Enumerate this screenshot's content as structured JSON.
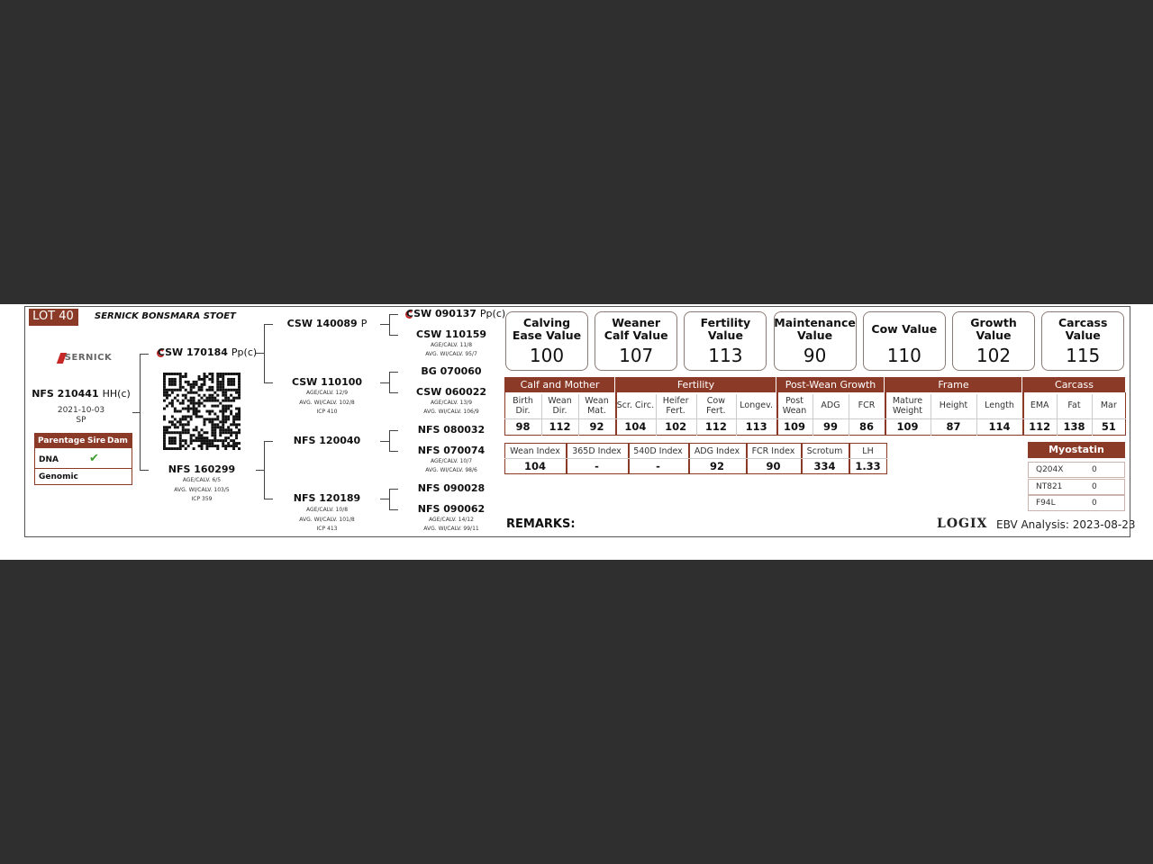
{
  "lot": {
    "label": "LOT 40",
    "title": "SERNICK BONSMARA STOET"
  },
  "brand": "SERNICK",
  "animal": {
    "id": "NFS 210441",
    "tag": "HH(c)",
    "birth_date": "2021-10-03",
    "code": "SP"
  },
  "parentage": {
    "headers": [
      "Parentage",
      "Sire",
      "Dam"
    ],
    "rows": [
      "DNA",
      "Genomic"
    ]
  },
  "pedigree": {
    "sire": {
      "id": "CSW 170184",
      "tag": "Pp(c)"
    },
    "dam": {
      "id": "NFS 160299",
      "details": [
        "AGE/CALV. 6/5",
        "AVG. WI/CALV. 103/5",
        "ICP 359"
      ]
    },
    "sire_sire": {
      "id": "CSW 140089",
      "tag": "P"
    },
    "sire_dam": {
      "id": "CSW 110100",
      "details": [
        "AGE/CALV. 12/9",
        "AVG. WI/CALV. 102/8",
        "ICP 410"
      ]
    },
    "dam_sire": {
      "id": "NFS 120040"
    },
    "dam_dam": {
      "id": "NFS 120189",
      "details": [
        "AGE/CALV. 10/8",
        "AVG. WI/CALV. 101/8",
        "ICP 413"
      ]
    },
    "great_grandparents": [
      {
        "id": "CSW 090137",
        "tag": "Pp(c)"
      },
      {
        "id": "CSW 110159",
        "details": [
          "AGE/CALV. 11/8",
          "AVG. WI/CALV. 95/7"
        ]
      },
      {
        "id": "BG 070060"
      },
      {
        "id": "CSW 060022",
        "details": [
          "AGE/CALV. 13/9",
          "AVG. WI/CALV. 106/9"
        ]
      },
      {
        "id": "NFS 080032"
      },
      {
        "id": "NFS 070074",
        "details": [
          "AGE/CALV. 10/7",
          "AVG. WI/CALV. 98/6"
        ]
      },
      {
        "id": "NFS 090028"
      },
      {
        "id": "NFS 090062",
        "details": [
          "AGE/CALV. 14/12",
          "AVG. WI/CALV. 99/11"
        ]
      }
    ]
  },
  "values": [
    {
      "label": "Calving Ease Value",
      "value": "100"
    },
    {
      "label": "Weaner Calf Value",
      "value": "107"
    },
    {
      "label": "Fertility Value",
      "value": "113"
    },
    {
      "label": "Maintenance Value",
      "value": "90"
    },
    {
      "label": "Cow Value",
      "value": "110"
    },
    {
      "label": "Growth Value",
      "value": "102"
    },
    {
      "label": "Carcass Value",
      "value": "115"
    }
  ],
  "ebv_groups": [
    {
      "title": "Calf and Mother",
      "traits": [
        {
          "label": "Birth Dir.",
          "value": "98"
        },
        {
          "label": "Wean Dir.",
          "value": "112"
        },
        {
          "label": "Wean Mat.",
          "value": "92"
        }
      ]
    },
    {
      "title": "Fertility",
      "traits": [
        {
          "label": "Scr. Circ.",
          "value": "104"
        },
        {
          "label": "Heifer Fert.",
          "value": "102"
        },
        {
          "label": "Cow Fert.",
          "value": "112"
        },
        {
          "label": "Longev.",
          "value": "113"
        }
      ]
    },
    {
      "title": "Post-Wean Growth",
      "traits": [
        {
          "label": "Post Wean",
          "value": "109"
        },
        {
          "label": "ADG",
          "value": "99"
        },
        {
          "label": "FCR",
          "value": "86"
        }
      ]
    },
    {
      "title": "Frame",
      "traits": [
        {
          "label": "Mature Weight",
          "value": "109"
        },
        {
          "label": "Height",
          "value": "87"
        },
        {
          "label": "Length",
          "value": "114"
        }
      ]
    },
    {
      "title": "Carcass",
      "traits": [
        {
          "label": "EMA",
          "value": "112"
        },
        {
          "label": "Fat",
          "value": "138"
        },
        {
          "label": "Mar",
          "value": "51"
        }
      ]
    }
  ],
  "indexes": [
    {
      "label": "Wean Index",
      "value": "104"
    },
    {
      "label": "365D Index",
      "value": "-"
    },
    {
      "label": "540D Index",
      "value": "-"
    },
    {
      "label": "ADG Index",
      "value": "92"
    },
    {
      "label": "FCR Index",
      "value": "90"
    },
    {
      "label": "Scrotum",
      "value": "334"
    },
    {
      "label": "LH",
      "value": "1.33"
    }
  ],
  "myostatin": {
    "title": "Myostatin",
    "rows": [
      [
        "Q204X",
        "0"
      ],
      [
        "NT821",
        "0"
      ],
      [
        "F94L",
        "0"
      ]
    ]
  },
  "remarks": "REMARKS:",
  "logo": "LOGIX",
  "analysis": "EBV Analysis: 2023-08-23"
}
